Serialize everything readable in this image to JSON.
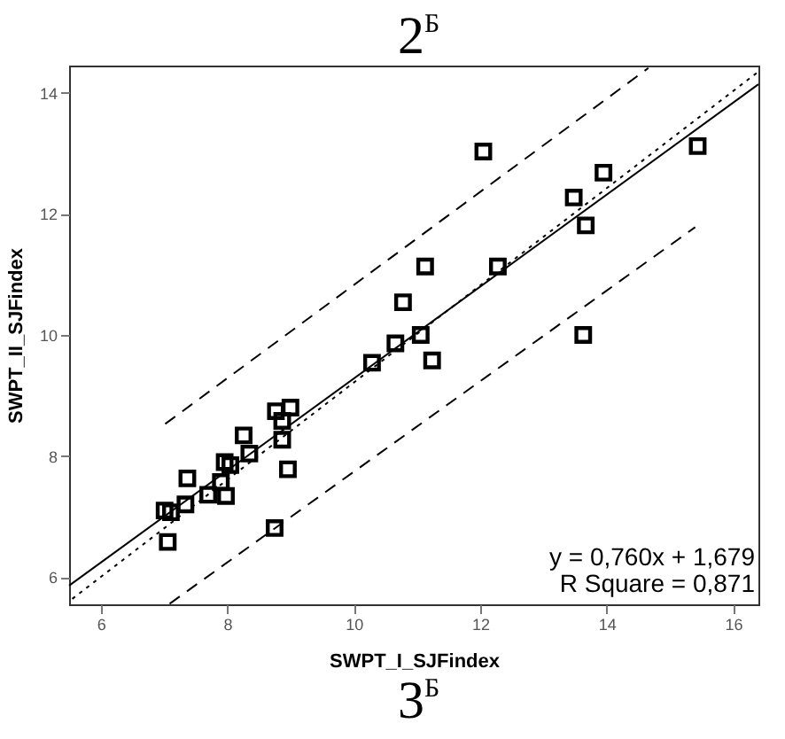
{
  "chart_data": {
    "type": "scatter",
    "title": "2$^{Б}$",
    "xlabel": "SWPT_I_SJFindex",
    "ylabel": "SWPT_II_SJFindex",
    "annotations": [
      "y = 0,760x + 1,679",
      "R Square = 0,871",
      "3$^{Б}$"
    ],
    "xlim": [
      5.5,
      16.4
    ],
    "xticks": [
      6,
      8,
      10,
      12,
      14,
      16
    ],
    "ylim": [
      5.55,
      14.45
    ],
    "yticks": [
      6,
      8,
      10,
      12,
      14
    ],
    "grid": false,
    "series": [
      {
        "color": "#000000",
        "marker": "square",
        "x": [
          12.05,
          15.44,
          13.95,
          13.48,
          13.67,
          7.01,
          7.11,
          7.06,
          7.34,
          7.37,
          7.7,
          7.9,
          7.98,
          7.96,
          8.05,
          8.35,
          8.26,
          8.77,
          9.0,
          8.87,
          8.87,
          8.96,
          8.75,
          10.29,
          10.66,
          10.78,
          11.13,
          12.28,
          11.06,
          11.24,
          13.63
        ],
        "values": [
          13.03,
          13.12,
          12.68,
          12.27,
          11.81,
          7.1,
          7.07,
          6.58,
          7.2,
          7.63,
          7.36,
          7.57,
          7.34,
          7.9,
          7.85,
          8.04,
          8.34,
          8.74,
          8.8,
          8.58,
          8.27,
          7.78,
          6.81,
          9.54,
          9.86,
          10.54,
          11.13,
          11.13,
          10.0,
          9.58,
          10.0
        ]
      },
      {
        "type": "line",
        "color": "#000000",
        "line_style": "solid",
        "marker": "none",
        "x": [
          5.5,
          16.4
        ],
        "values": [
          5.86,
          14.14
        ]
      },
      {
        "type": "line",
        "color": "#000000",
        "line_style": "dotted",
        "marker": "none",
        "x": [
          5.55,
          16.4
        ],
        "values": [
          5.64,
          14.35
        ]
      },
      {
        "type": "line",
        "color": "#000000",
        "line_style": "dashed",
        "marker": "none",
        "x": [
          7.02,
          14.66
        ],
        "values": [
          8.53,
          14.41
        ]
      },
      {
        "type": "line",
        "color": "#000000",
        "line_style": "dashed",
        "marker": "none",
        "x": [
          7.09,
          15.4
        ],
        "values": [
          5.56,
          11.78
        ]
      }
    ]
  }
}
